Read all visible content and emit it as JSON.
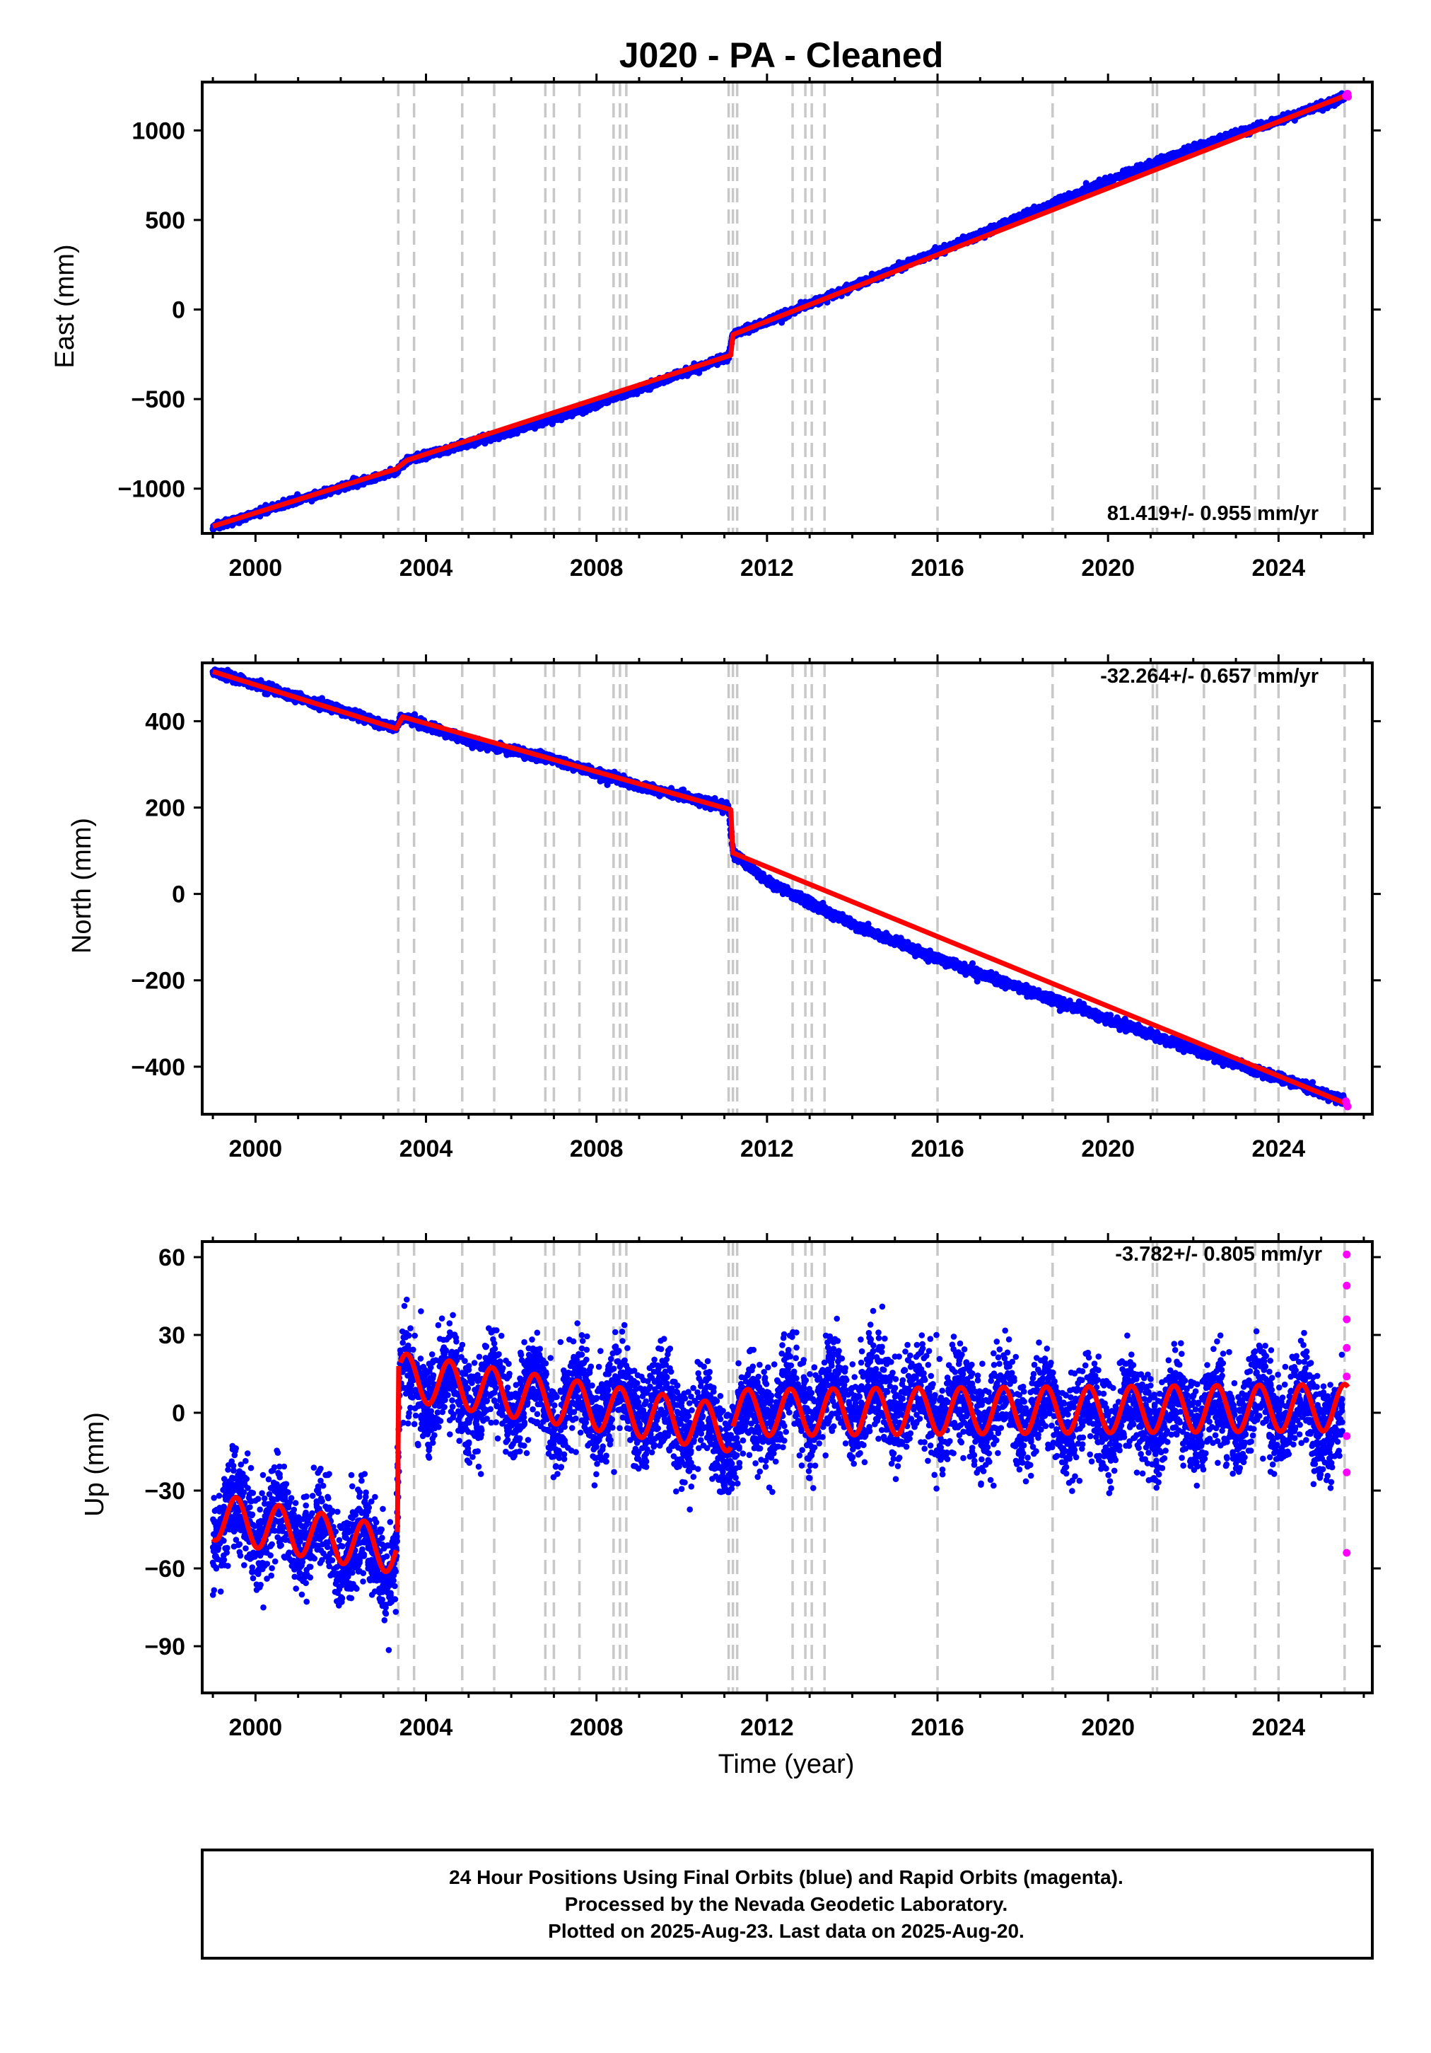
{
  "figure": {
    "title": "J020  - PA - Cleaned",
    "xlabel": "Time (year)",
    "footer": [
      "24 Hour Positions Using Final Orbits (blue) and Rapid Orbits (magenta).",
      "Processed by the Nevada Geodetic Laboratory.",
      "Plotted on 2025-Aug-23. Last data on 2025-Aug-20."
    ],
    "colors": {
      "final_orbits": "#0000ff",
      "rapid_orbits": "#ff00ff",
      "model": "#ff0000",
      "breaks": "#c8c8c8",
      "frame": "#000000"
    }
  },
  "chart_data": [
    {
      "type": "scatter",
      "panel": "east",
      "ylabel": "East (mm)",
      "xlim": [
        1998.75,
        2026.2
      ],
      "ylim": [
        -1250,
        1270
      ],
      "xticks": [
        "2000",
        "2004",
        "2008",
        "2012",
        "2016",
        "2020",
        "2024"
      ],
      "yticks": [
        "−1000",
        "−500",
        "0",
        "500",
        "1000"
      ],
      "rate_label": "81.419+/- 0.955 mm/yr",
      "rate_position": "bottom-right",
      "series": [
        {
          "name": "Final Orbits",
          "color": "blue",
          "x": [
            1999.0,
            2001.0,
            2003.3,
            2003.55,
            2005.0,
            2007.0,
            2009.0,
            2011.1,
            2011.2,
            2012.0,
            2014.0,
            2016.0,
            2018.0,
            2020.0,
            2022.0,
            2024.0,
            2025.55
          ],
          "y": [
            -1215,
            -1062,
            -905,
            -842,
            -748,
            -610,
            -443,
            -262,
            -140,
            -67,
            127,
            323,
            520,
            720,
            900,
            1055,
            1185
          ]
        },
        {
          "name": "Rapid Orbits",
          "color": "magenta",
          "x": [
            2025.58,
            2025.6,
            2025.62,
            2025.63
          ],
          "y": [
            1192,
            1198,
            1205,
            1188
          ]
        }
      ],
      "model": {
        "color": "red",
        "x": [
          1999.0,
          2003.3,
          2003.55,
          2011.15,
          2011.2,
          2025.63
        ],
        "y": [
          -1210,
          -890,
          -842,
          -255,
          -140,
          1200
        ]
      },
      "breaks": [
        2003.35,
        2003.72,
        2004.85,
        2005.6,
        2006.8,
        2007.0,
        2007.6,
        2008.4,
        2008.55,
        2008.7,
        2011.1,
        2011.2,
        2011.3,
        2012.6,
        2012.9,
        2013.05,
        2013.35,
        2016.0,
        2018.7,
        2021.05,
        2021.15,
        2022.25,
        2023.45,
        2024.0,
        2025.55
      ]
    },
    {
      "type": "scatter",
      "panel": "north",
      "ylabel": "North (mm)",
      "xlim": [
        1998.75,
        2026.2
      ],
      "ylim": [
        -510,
        535
      ],
      "xticks": [
        "2000",
        "2004",
        "2008",
        "2012",
        "2016",
        "2020",
        "2024"
      ],
      "yticks": [
        "−400",
        "−200",
        "0",
        "200",
        "400"
      ],
      "rate_label": "-32.264+/- 0.657 mm/yr",
      "rate_position": "top-right",
      "series": [
        {
          "name": "Final Orbits",
          "color": "blue",
          "x": [
            1999.0,
            2001.0,
            2003.3,
            2003.45,
            2005.0,
            2007.0,
            2009.0,
            2011.1,
            2011.2,
            2012.0,
            2014.0,
            2016.0,
            2018.0,
            2020.0,
            2022.0,
            2024.0,
            2025.55
          ],
          "y": [
            515,
            455,
            385,
            410,
            355,
            310,
            250,
            200,
            95,
            30,
            -70,
            -150,
            -220,
            -290,
            -360,
            -425,
            -480
          ]
        },
        {
          "name": "Rapid Orbits",
          "color": "magenta",
          "x": [
            2025.58,
            2025.6,
            2025.62
          ],
          "y": [
            -480,
            -488,
            -492
          ]
        }
      ],
      "model": {
        "color": "red",
        "x": [
          1999.0,
          2003.3,
          2003.45,
          2011.15,
          2011.2,
          2025.63
        ],
        "y": [
          515,
          383,
          410,
          195,
          95,
          -487
        ]
      },
      "breaks": [
        2003.35,
        2003.72,
        2004.85,
        2005.6,
        2006.8,
        2007.0,
        2007.6,
        2008.4,
        2008.55,
        2008.7,
        2011.1,
        2011.2,
        2011.3,
        2012.6,
        2012.9,
        2013.05,
        2013.35,
        2016.0,
        2018.7,
        2021.05,
        2021.15,
        2022.25,
        2023.45,
        2024.0,
        2025.55
      ]
    },
    {
      "type": "scatter",
      "panel": "up",
      "ylabel": "Up (mm)",
      "xlabel": "Time (year)",
      "xlim": [
        1998.75,
        2026.2
      ],
      "ylim": [
        -108,
        66
      ],
      "xticks": [
        "2000",
        "2004",
        "2008",
        "2012",
        "2016",
        "2020",
        "2024"
      ],
      "yticks": [
        "−90",
        "−60",
        "−30",
        "0",
        "30",
        "60"
      ],
      "rate_label": "-3.782+/- 0.805 mm/yr",
      "rate_position": "top-right",
      "series": [
        {
          "name": "Final Orbits",
          "color": "blue",
          "x": [
            1999.0,
            2000.0,
            2001.0,
            2002.0,
            2003.0,
            2003.3,
            2003.4,
            2005.0,
            2007.0,
            2009.0,
            2011.0,
            2012.0,
            2014.0,
            2016.0,
            2018.0,
            2020.0,
            2022.0,
            2024.0,
            2025.5
          ],
          "y": [
            -40,
            -42,
            -45,
            -50,
            -55,
            -58,
            12,
            8,
            4,
            2,
            -10,
            2,
            5,
            3,
            0,
            -2,
            0,
            2,
            -4
          ],
          "scatter_mm": 9
        },
        {
          "name": "Rapid Orbits",
          "color": "magenta",
          "x": [
            2025.6,
            2025.6,
            2025.6,
            2025.6,
            2025.6,
            2025.6,
            2025.6,
            2025.6
          ],
          "y": [
            61,
            49,
            36,
            25,
            14,
            -9,
            -23,
            -54
          ]
        }
      ],
      "model": {
        "color": "red",
        "annual_amplitude_mm": 9,
        "segments": [
          {
            "x": [
              1999.0,
              2003.3
            ],
            "y": [
              -40,
              -53
            ]
          },
          {
            "x": [
              2003.4,
              2011.15
            ],
            "y": [
              14,
              -6
            ]
          },
          {
            "x": [
              2011.2,
              2025.63
            ],
            "y": [
              0,
              2
            ]
          }
        ]
      },
      "breaks": [
        2003.35,
        2003.72,
        2004.85,
        2005.6,
        2006.8,
        2007.0,
        2007.6,
        2008.4,
        2008.55,
        2008.7,
        2011.1,
        2011.2,
        2011.3,
        2012.6,
        2012.9,
        2013.05,
        2013.35,
        2016.0,
        2018.7,
        2021.05,
        2021.15,
        2022.25,
        2023.45,
        2024.0,
        2025.55
      ]
    }
  ]
}
